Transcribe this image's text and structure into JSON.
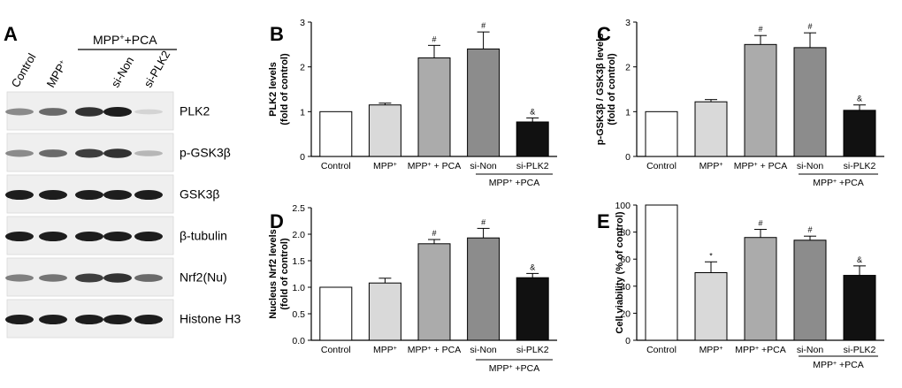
{
  "panel_letters": {
    "a": "A",
    "b": "B",
    "c": "C",
    "d": "D",
    "e": "E"
  },
  "blot": {
    "lanes": [
      "Control",
      "MPP+",
      "si-Non",
      "si-PLK2"
    ],
    "group_label": "MPP+ + PCA",
    "rows": [
      {
        "label": "PLK2",
        "intensity": [
          0.45,
          0.6,
          0.85,
          0.95,
          0.12
        ]
      },
      {
        "label": "p-GSK3β",
        "intensity": [
          0.45,
          0.6,
          0.8,
          0.85,
          0.25
        ]
      },
      {
        "label": "GSK3β",
        "intensity": [
          0.95,
          0.95,
          0.95,
          0.95,
          0.95
        ]
      },
      {
        "label": "β-tubulin",
        "intensity": [
          0.95,
          0.95,
          0.95,
          0.95,
          0.95
        ]
      },
      {
        "label": "Nrf2(Nu)",
        "intensity": [
          0.5,
          0.55,
          0.8,
          0.85,
          0.6
        ]
      },
      {
        "label": "Histone H3",
        "intensity": [
          0.95,
          0.95,
          0.95,
          0.95,
          0.95
        ]
      }
    ]
  },
  "chart_data": [
    {
      "id": "B",
      "type": "bar",
      "title": "",
      "ylabel": [
        "PLK2  levels",
        "(fold of control)"
      ],
      "ylim": [
        0,
        3
      ],
      "yticks": [
        0,
        1,
        2,
        3
      ],
      "categories": [
        "Control",
        "MPP+",
        "MPP+ + PCA",
        "si-Non",
        "si-PLK2"
      ],
      "values": [
        1.0,
        1.15,
        2.2,
        2.4,
        0.77
      ],
      "errors": [
        0,
        0.04,
        0.28,
        0.38,
        0.09
      ],
      "significance": [
        "",
        "",
        "#",
        "#",
        "&"
      ],
      "colors": [
        "#ffffff",
        "#d9d9d9",
        "#ababab",
        "#8c8c8c",
        "#111111"
      ],
      "group_label": "MPP+ +PCA"
    },
    {
      "id": "C",
      "type": "bar",
      "title": "",
      "ylabel": [
        "p-GSK3β / GSK3β levels",
        "(fold of control)"
      ],
      "ylim": [
        0,
        3
      ],
      "yticks": [
        0,
        1,
        2,
        3
      ],
      "categories": [
        "Control",
        "MPP+",
        "MPP+ + PCA",
        "si-Non",
        "si-PLK2"
      ],
      "values": [
        1.0,
        1.22,
        2.5,
        2.43,
        1.03
      ],
      "errors": [
        0,
        0.05,
        0.2,
        0.33,
        0.12
      ],
      "significance": [
        "",
        "",
        "#",
        "#",
        "&"
      ],
      "colors": [
        "#ffffff",
        "#d9d9d9",
        "#ababab",
        "#8c8c8c",
        "#111111"
      ],
      "group_label": "MPP+ +PCA"
    },
    {
      "id": "D",
      "type": "bar",
      "title": "",
      "ylabel": [
        "Nucleus Nrf2 levels",
        "(fold of control)"
      ],
      "ylim": [
        0,
        2.5
      ],
      "yticks": [
        0,
        0.5,
        1.0,
        1.5,
        2.0,
        2.5
      ],
      "ytick_labels": [
        "0.0",
        "0.5",
        "1.0",
        "1.5",
        "2.0",
        "2.5"
      ],
      "categories": [
        "Control",
        "MPP+",
        "MPP+ + PCA",
        "si-Non",
        "si-PLK2"
      ],
      "values": [
        1.0,
        1.08,
        1.82,
        1.93,
        1.18
      ],
      "errors": [
        0,
        0.09,
        0.08,
        0.18,
        0.08
      ],
      "significance": [
        "",
        "",
        "#",
        "#",
        "&"
      ],
      "colors": [
        "#ffffff",
        "#d9d9d9",
        "#ababab",
        "#8c8c8c",
        "#111111"
      ],
      "group_label": "MPP+ +PCA"
    },
    {
      "id": "E",
      "type": "bar",
      "title": "",
      "ylabel": [
        "Cell viability (% of control)"
      ],
      "ylim": [
        0,
        100
      ],
      "yticks": [
        0,
        20,
        40,
        60,
        80,
        100
      ],
      "categories": [
        "Control",
        "MPP+",
        "MPP+ +PCA",
        "si-Non",
        "si-PLK2"
      ],
      "values": [
        100,
        50,
        76,
        74,
        48
      ],
      "errors": [
        0,
        8,
        6,
        3,
        7
      ],
      "significance": [
        "",
        "*",
        "#",
        "#",
        "&"
      ],
      "colors": [
        "#ffffff",
        "#d9d9d9",
        "#ababab",
        "#8c8c8c",
        "#111111"
      ],
      "group_label": "MPP+ +PCA"
    }
  ]
}
